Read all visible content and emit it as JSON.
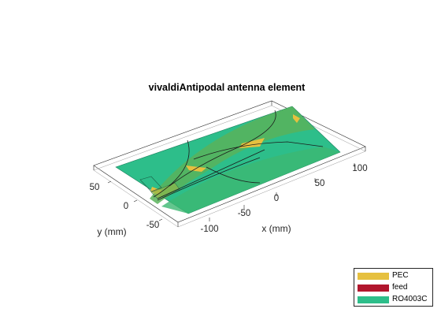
{
  "figure": {
    "title": "vivaldiAntipodal antenna element",
    "x_label": "x (mm)",
    "y_label": "y (mm)",
    "x_ticks": [
      "-100",
      "-50",
      "0",
      "50",
      "100"
    ],
    "y_ticks": [
      "50",
      "0",
      "-50"
    ]
  },
  "legend": {
    "items": [
      {
        "label": "PEC",
        "color": "#e6c03f"
      },
      {
        "label": "feed",
        "color": "#b1162d"
      },
      {
        "label": "RO4003C",
        "color": "#2dbe8a"
      }
    ]
  },
  "colors": {
    "substrate": "#2dbe8a",
    "metal": "#e6c03f",
    "blend": "#59b35a"
  }
}
